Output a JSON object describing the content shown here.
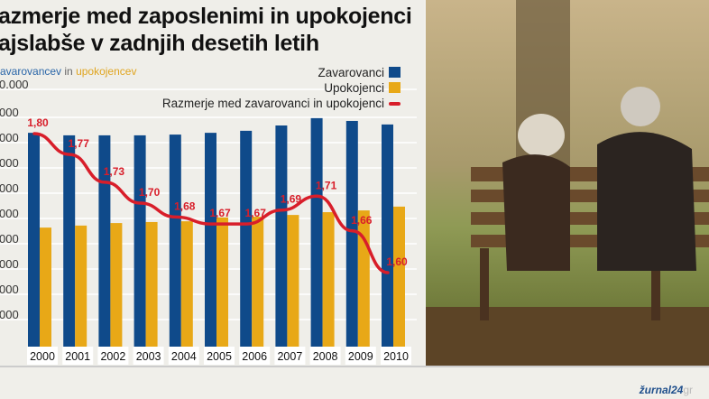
{
  "title_line1": "azmerje med zaposlenimi in upokojenci",
  "title_line2": "ajslabše v zadnjih desetih letih",
  "subtitle": {
    "part1": "avarovancev",
    "part2": " in ",
    "part3": "upokojencev"
  },
  "footer": {
    "logo": "žurnal24",
    "logo_suffix": "gr"
  },
  "colors": {
    "insured": "#0f4a8a",
    "retired": "#e8a817",
    "ratio": "#d81e2a"
  },
  "chart_data": {
    "type": "bar",
    "categories": [
      "2000",
      "2001",
      "2002",
      "2003",
      "2004",
      "2005",
      "2006",
      "2007",
      "2008",
      "2009",
      "2010"
    ],
    "y_tick_labels_visible": [
      "0.000",
      "000",
      "000",
      "000",
      "000",
      "000",
      "000",
      "000",
      "000",
      "000"
    ],
    "series": [
      {
        "name": "Zavarovanci",
        "type": "bar",
        "values": [
          846,
          836,
          836,
          836,
          839,
          846,
          854,
          875,
          904,
          893,
          879
        ]
      },
      {
        "name": "Upokojenci",
        "type": "bar",
        "values": [
          471,
          479,
          489,
          493,
          496,
          511,
          514,
          521,
          532,
          539,
          554
        ]
      },
      {
        "name": "Razmerje med zavarovanci in upokojenci",
        "type": "line",
        "values": [
          1.8,
          1.77,
          1.73,
          1.7,
          1.68,
          1.67,
          1.67,
          1.69,
          1.71,
          1.66,
          1.6
        ],
        "labels": [
          "1,80",
          "1,77",
          "1,73",
          "1,70",
          "1,68",
          "1,67",
          "1,67",
          "1,69",
          "1,71",
          "1,66",
          "1,60"
        ]
      }
    ],
    "legend": "top-right",
    "grid": true
  }
}
